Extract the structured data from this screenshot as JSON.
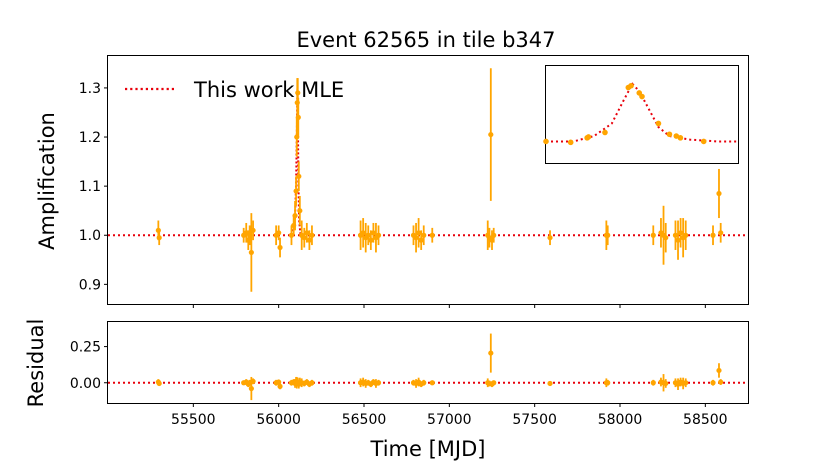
{
  "chart_data": {
    "type": "scatter",
    "title": "Event 62565 in tile b347",
    "xlabel": "Time [MJD]",
    "colors": {
      "data": "#FFA500",
      "model": "#E8000B",
      "axes": "#000000"
    },
    "xlim": [
      55000,
      58750
    ],
    "x_ticks": [
      55500,
      56000,
      56500,
      57000,
      57500,
      58000,
      58500
    ],
    "main": {
      "ylabel": "Amplification",
      "ylim": [
        0.86,
        1.365
      ],
      "y_ticks": [
        0.9,
        1.0,
        1.1,
        1.2,
        1.3
      ],
      "legend": {
        "label": "This work MLE",
        "placement": "top-left"
      },
      "model_baseline": 1.0,
      "model_peak": {
        "x": [
          56080,
          56095,
          56102,
          56107,
          56110,
          56113,
          56116,
          56120,
          56128
        ],
        "y": [
          1.0,
          1.03,
          1.1,
          1.22,
          1.3,
          1.22,
          1.1,
          1.03,
          1.0
        ]
      },
      "points": [
        {
          "x": 55295,
          "y": 1.01,
          "e": 0.02
        },
        {
          "x": 55300,
          "y": 0.995,
          "e": 0.015
        },
        {
          "x": 55795,
          "y": 1.0,
          "e": 0.015
        },
        {
          "x": 55810,
          "y": 1.005,
          "e": 0.02
        },
        {
          "x": 55822,
          "y": 0.99,
          "e": 0.02
        },
        {
          "x": 55830,
          "y": 1.0,
          "e": 0.02
        },
        {
          "x": 55840,
          "y": 0.965,
          "e": 0.08
        },
        {
          "x": 55850,
          "y": 1.01,
          "e": 0.02
        },
        {
          "x": 55985,
          "y": 1.0,
          "e": 0.02
        },
        {
          "x": 56000,
          "y": 1.005,
          "e": 0.015
        },
        {
          "x": 56008,
          "y": 0.975,
          "e": 0.02
        },
        {
          "x": 56075,
          "y": 1.0,
          "e": 0.02
        },
        {
          "x": 56088,
          "y": 1.02,
          "e": 0.02
        },
        {
          "x": 56096,
          "y": 1.04,
          "e": 0.03
        },
        {
          "x": 56102,
          "y": 1.09,
          "e": 0.03
        },
        {
          "x": 56106,
          "y": 1.2,
          "e": 0.04
        },
        {
          "x": 56109,
          "y": 1.27,
          "e": 0.05
        },
        {
          "x": 56112,
          "y": 1.29,
          "e": 0.03
        },
        {
          "x": 56115,
          "y": 1.24,
          "e": 0.04
        },
        {
          "x": 56118,
          "y": 1.12,
          "e": 0.03
        },
        {
          "x": 56124,
          "y": 1.05,
          "e": 0.03
        },
        {
          "x": 56135,
          "y": 1.0,
          "e": 0.03
        },
        {
          "x": 56150,
          "y": 0.995,
          "e": 0.02
        },
        {
          "x": 56165,
          "y": 1.005,
          "e": 0.02
        },
        {
          "x": 56180,
          "y": 0.99,
          "e": 0.02
        },
        {
          "x": 56195,
          "y": 1.0,
          "e": 0.02
        },
        {
          "x": 56480,
          "y": 1.0,
          "e": 0.03
        },
        {
          "x": 56495,
          "y": 1.005,
          "e": 0.03
        },
        {
          "x": 56510,
          "y": 0.995,
          "e": 0.03
        },
        {
          "x": 56525,
          "y": 1.0,
          "e": 0.02
        },
        {
          "x": 56540,
          "y": 0.99,
          "e": 0.02
        },
        {
          "x": 56555,
          "y": 1.005,
          "e": 0.02
        },
        {
          "x": 56570,
          "y": 0.995,
          "e": 0.03
        },
        {
          "x": 56585,
          "y": 1.0,
          "e": 0.02
        },
        {
          "x": 56790,
          "y": 1.0,
          "e": 0.02
        },
        {
          "x": 56805,
          "y": 0.995,
          "e": 0.03
        },
        {
          "x": 56820,
          "y": 1.005,
          "e": 0.03
        },
        {
          "x": 56835,
          "y": 0.99,
          "e": 0.02
        },
        {
          "x": 56850,
          "y": 1.0,
          "e": 0.02
        },
        {
          "x": 56900,
          "y": 1.0,
          "e": 0.015
        },
        {
          "x": 57225,
          "y": 1.0,
          "e": 0.03
        },
        {
          "x": 57235,
          "y": 0.995,
          "e": 0.02
        },
        {
          "x": 57243,
          "y": 1.205,
          "e": 0.135
        },
        {
          "x": 57250,
          "y": 0.99,
          "e": 0.02
        },
        {
          "x": 57260,
          "y": 1.0,
          "e": 0.015
        },
        {
          "x": 57590,
          "y": 0.995,
          "e": 0.015
        },
        {
          "x": 57920,
          "y": 1.0,
          "e": 0.03
        },
        {
          "x": 57928,
          "y": 1.0,
          "e": 0.02
        },
        {
          "x": 58195,
          "y": 1.0,
          "e": 0.02
        },
        {
          "x": 58240,
          "y": 1.005,
          "e": 0.03
        },
        {
          "x": 58255,
          "y": 1.0,
          "e": 0.06
        },
        {
          "x": 58268,
          "y": 0.995,
          "e": 0.03
        },
        {
          "x": 58325,
          "y": 1.0,
          "e": 0.03
        },
        {
          "x": 58340,
          "y": 0.99,
          "e": 0.04
        },
        {
          "x": 58355,
          "y": 1.005,
          "e": 0.03
        },
        {
          "x": 58370,
          "y": 0.995,
          "e": 0.04
        },
        {
          "x": 58385,
          "y": 1.0,
          "e": 0.03
        },
        {
          "x": 58545,
          "y": 1.0,
          "e": 0.02
        },
        {
          "x": 58580,
          "y": 1.085,
          "e": 0.05
        },
        {
          "x": 58590,
          "y": 1.005,
          "e": 0.02
        }
      ]
    },
    "inset": {
      "xlim": [
        56040,
        56180
      ],
      "ylim": [
        0.88,
        1.42
      ],
      "points": [
        {
          "x": 56040,
          "y": 1.0
        },
        {
          "x": 56058,
          "y": 0.995
        },
        {
          "x": 56070,
          "y": 1.02
        },
        {
          "x": 56071,
          "y": 1.025
        },
        {
          "x": 56083,
          "y": 1.05
        },
        {
          "x": 56100,
          "y": 1.3
        },
        {
          "x": 56102,
          "y": 1.31
        },
        {
          "x": 56108,
          "y": 1.27
        },
        {
          "x": 56110,
          "y": 1.25
        },
        {
          "x": 56122,
          "y": 1.1
        },
        {
          "x": 56130,
          "y": 1.04
        },
        {
          "x": 56135,
          "y": 1.03
        },
        {
          "x": 56138,
          "y": 1.02
        },
        {
          "x": 56155,
          "y": 1.0
        }
      ],
      "model": {
        "x": [
          56040,
          56060,
          56075,
          56088,
          56096,
          56103,
          56108,
          56115,
          56122,
          56130,
          56145,
          56165,
          56180
        ],
        "y": [
          1.0,
          1.0,
          1.03,
          1.1,
          1.22,
          1.32,
          1.28,
          1.18,
          1.08,
          1.03,
          1.01,
          1.0,
          1.0
        ]
      }
    },
    "residual": {
      "ylabel": "Residual",
      "ylim": [
        -0.14,
        0.42
      ],
      "y_ticks": [
        0.0,
        0.25
      ],
      "y_tick_labels": [
        "0.00",
        "0.25"
      ],
      "model_baseline": 0.0,
      "points": [
        {
          "x": 55295,
          "y": 0.005,
          "e": 0.02
        },
        {
          "x": 55300,
          "y": -0.005,
          "e": 0.015
        },
        {
          "x": 55795,
          "y": 0.0,
          "e": 0.015
        },
        {
          "x": 55810,
          "y": 0.005,
          "e": 0.02
        },
        {
          "x": 55822,
          "y": -0.01,
          "e": 0.02
        },
        {
          "x": 55830,
          "y": 0.0,
          "e": 0.02
        },
        {
          "x": 55840,
          "y": -0.04,
          "e": 0.08
        },
        {
          "x": 55850,
          "y": 0.01,
          "e": 0.02
        },
        {
          "x": 55985,
          "y": 0.0,
          "e": 0.02
        },
        {
          "x": 56000,
          "y": 0.005,
          "e": 0.015
        },
        {
          "x": 56008,
          "y": -0.025,
          "e": 0.02
        },
        {
          "x": 56075,
          "y": 0.0,
          "e": 0.02
        },
        {
          "x": 56088,
          "y": 0.005,
          "e": 0.02
        },
        {
          "x": 56096,
          "y": -0.005,
          "e": 0.03
        },
        {
          "x": 56102,
          "y": 0.01,
          "e": 0.03
        },
        {
          "x": 56106,
          "y": 0.0,
          "e": 0.04
        },
        {
          "x": 56112,
          "y": 0.005,
          "e": 0.03
        },
        {
          "x": 56118,
          "y": -0.01,
          "e": 0.03
        },
        {
          "x": 56124,
          "y": 0.005,
          "e": 0.03
        },
        {
          "x": 56135,
          "y": 0.0,
          "e": 0.03
        },
        {
          "x": 56150,
          "y": -0.005,
          "e": 0.02
        },
        {
          "x": 56165,
          "y": 0.005,
          "e": 0.02
        },
        {
          "x": 56180,
          "y": -0.01,
          "e": 0.02
        },
        {
          "x": 56195,
          "y": 0.0,
          "e": 0.02
        },
        {
          "x": 56480,
          "y": 0.0,
          "e": 0.03
        },
        {
          "x": 56495,
          "y": 0.005,
          "e": 0.03
        },
        {
          "x": 56510,
          "y": -0.005,
          "e": 0.03
        },
        {
          "x": 56525,
          "y": 0.0,
          "e": 0.02
        },
        {
          "x": 56540,
          "y": -0.01,
          "e": 0.02
        },
        {
          "x": 56555,
          "y": 0.005,
          "e": 0.02
        },
        {
          "x": 56570,
          "y": -0.005,
          "e": 0.03
        },
        {
          "x": 56585,
          "y": 0.0,
          "e": 0.02
        },
        {
          "x": 56790,
          "y": 0.0,
          "e": 0.02
        },
        {
          "x": 56805,
          "y": -0.005,
          "e": 0.03
        },
        {
          "x": 56820,
          "y": 0.005,
          "e": 0.03
        },
        {
          "x": 56835,
          "y": -0.01,
          "e": 0.02
        },
        {
          "x": 56850,
          "y": 0.0,
          "e": 0.02
        },
        {
          "x": 56900,
          "y": 0.0,
          "e": 0.015
        },
        {
          "x": 57225,
          "y": 0.0,
          "e": 0.03
        },
        {
          "x": 57235,
          "y": -0.005,
          "e": 0.02
        },
        {
          "x": 57243,
          "y": 0.205,
          "e": 0.135
        },
        {
          "x": 57250,
          "y": -0.01,
          "e": 0.02
        },
        {
          "x": 57260,
          "y": 0.0,
          "e": 0.015
        },
        {
          "x": 57590,
          "y": -0.005,
          "e": 0.015
        },
        {
          "x": 57920,
          "y": 0.0,
          "e": 0.03
        },
        {
          "x": 57928,
          "y": 0.0,
          "e": 0.02
        },
        {
          "x": 58195,
          "y": 0.0,
          "e": 0.02
        },
        {
          "x": 58240,
          "y": 0.005,
          "e": 0.03
        },
        {
          "x": 58255,
          "y": 0.0,
          "e": 0.06
        },
        {
          "x": 58268,
          "y": -0.005,
          "e": 0.03
        },
        {
          "x": 58325,
          "y": 0.0,
          "e": 0.03
        },
        {
          "x": 58340,
          "y": -0.01,
          "e": 0.04
        },
        {
          "x": 58355,
          "y": 0.005,
          "e": 0.03
        },
        {
          "x": 58370,
          "y": -0.005,
          "e": 0.04
        },
        {
          "x": 58385,
          "y": 0.0,
          "e": 0.03
        },
        {
          "x": 58545,
          "y": 0.0,
          "e": 0.02
        },
        {
          "x": 58580,
          "y": 0.085,
          "e": 0.05
        },
        {
          "x": 58590,
          "y": 0.005,
          "e": 0.02
        }
      ]
    }
  }
}
